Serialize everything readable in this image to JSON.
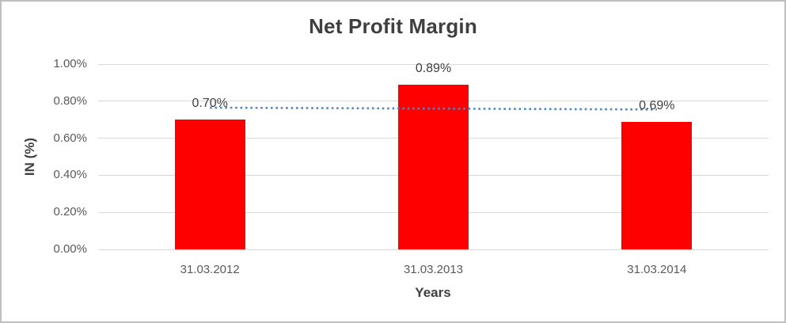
{
  "chart_data": {
    "type": "bar",
    "title": "Net Profit Margin",
    "xlabel": "Years",
    "ylabel": "IN (%)",
    "unit": "%",
    "categories": [
      "31.03.2012",
      "31.03.2013",
      "31.03.2014"
    ],
    "series": [
      {
        "name": "Net Profit Margin",
        "values": [
          0.7,
          0.89,
          0.69
        ]
      }
    ],
    "data_labels": [
      "0.70%",
      "0.89%",
      "0.69%"
    ],
    "y_ticks": [
      {
        "label": "0.00%",
        "value": 0.0
      },
      {
        "label": "0.20%",
        "value": 0.2
      },
      {
        "label": "0.40%",
        "value": 0.4
      },
      {
        "label": "0.60%",
        "value": 0.6
      },
      {
        "label": "0.80%",
        "value": 0.8
      },
      {
        "label": "1.00%",
        "value": 1.0
      }
    ],
    "ylim": [
      0,
      1.0
    ],
    "grid": true,
    "legend": "none",
    "trendline": {
      "type": "linear",
      "style": "dotted",
      "start_value": 0.765,
      "end_value": 0.755
    },
    "colors": {
      "bar": "#ff0000",
      "gridline": "#d9d9d9",
      "trendline": "#4e86c8",
      "tick_text": "#595959",
      "title_text": "#3f3f3f",
      "chart_border": "#bfbfbf"
    }
  }
}
